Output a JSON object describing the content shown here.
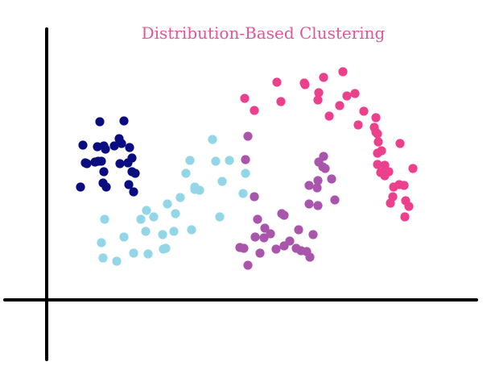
{
  "chart_data": {
    "type": "scatter",
    "title": "Distribution-Based Clustering",
    "xlabel": "",
    "ylabel": "",
    "grid": false,
    "legend": "none",
    "xlim": [
      0,
      540
    ],
    "ylim": [
      0,
      340
    ],
    "colors": {
      "title": "#e0569a",
      "axes": "#000000"
    },
    "series": [
      {
        "color": "#0a0d80",
        "points": [
          [
            66,
            221
          ],
          [
            93,
            194
          ],
          [
            96,
            222
          ],
          [
            71,
            191
          ],
          [
            42,
            140
          ],
          [
            48,
            170
          ],
          [
            64,
            172
          ],
          [
            71,
            159
          ],
          [
            68,
            172
          ],
          [
            63,
            190
          ],
          [
            73,
            187
          ],
          [
            60,
            171
          ],
          [
            45,
            192
          ],
          [
            50,
            169
          ],
          [
            101,
            170
          ],
          [
            103,
            189
          ],
          [
            84,
            191
          ],
          [
            106,
            176
          ],
          [
            110,
            157
          ],
          [
            108,
            134
          ],
          [
            102,
            143
          ],
          [
            90,
            200
          ],
          [
            91,
            169
          ],
          [
            106,
            159
          ],
          [
            74,
            140
          ],
          [
            70,
            145
          ]
        ]
      },
      {
        "color": "#93d6e8",
        "points": [
          [
            68,
            71
          ],
          [
            72,
            100
          ],
          [
            70,
            52
          ],
          [
            87,
            48
          ],
          [
            96,
            78
          ],
          [
            108,
            58
          ],
          [
            126,
            57
          ],
          [
            117,
            100
          ],
          [
            124,
            111
          ],
          [
            123,
            85
          ],
          [
            145,
            63
          ],
          [
            148,
            64
          ],
          [
            158,
            85
          ],
          [
            160,
            107
          ],
          [
            150,
            119
          ],
          [
            166,
            127
          ],
          [
            180,
            87
          ],
          [
            184,
            140
          ],
          [
            190,
            136
          ],
          [
            173,
            157
          ],
          [
            178,
            173
          ],
          [
            184,
            137
          ],
          [
            206,
            199
          ],
          [
            210,
            172
          ],
          [
            215,
            103
          ],
          [
            218,
            147
          ],
          [
            227,
            173
          ],
          [
            244,
            132
          ],
          [
            247,
            157
          ],
          [
            133,
            103
          ],
          [
            144,
            81
          ]
        ]
      },
      {
        "color": "#a955ac",
        "points": [
          [
            240,
            65
          ],
          [
            250,
            43
          ],
          [
            259,
            78
          ],
          [
            245,
            64
          ],
          [
            265,
            58
          ],
          [
            270,
            77
          ],
          [
            271,
            89
          ],
          [
            285,
            63
          ],
          [
            278,
            82
          ],
          [
            295,
            67
          ],
          [
            295,
            105
          ],
          [
            292,
            107
          ],
          [
            302,
            73
          ],
          [
            310,
            64
          ],
          [
            316,
            61
          ],
          [
            313,
            87
          ],
          [
            323,
            60
          ],
          [
            326,
            119
          ],
          [
            331,
            81
          ],
          [
            327,
            53
          ],
          [
            337,
            148
          ],
          [
            337,
            117
          ],
          [
            346,
            163
          ],
          [
            343,
            165
          ],
          [
            336,
            139
          ],
          [
            326,
            142
          ],
          [
            354,
            150
          ],
          [
            358,
            124
          ],
          [
            338,
            171
          ],
          [
            344,
            178
          ],
          [
            258,
            128
          ],
          [
            262,
            100
          ],
          [
            250,
            203
          ],
          [
            247,
            174
          ]
        ]
      },
      {
        "color": "#ec3f8c",
        "points": [
          [
            246,
            250
          ],
          [
            258,
            235
          ],
          [
            286,
            270
          ],
          [
            291,
            246
          ],
          [
            321,
            267
          ],
          [
            337,
            248
          ],
          [
            320,
            269
          ],
          [
            344,
            276
          ],
          [
            368,
            283
          ],
          [
            338,
            257
          ],
          [
            351,
            228
          ],
          [
            364,
            241
          ],
          [
            373,
            253
          ],
          [
            383,
            256
          ],
          [
            387,
            217
          ],
          [
            409,
            226
          ],
          [
            411,
            206
          ],
          [
            412,
            196
          ],
          [
            416,
            185
          ],
          [
            411,
            168
          ],
          [
            415,
            158
          ],
          [
            420,
            167
          ],
          [
            425,
            159
          ],
          [
            430,
            128
          ],
          [
            420,
            154
          ],
          [
            445,
            103
          ],
          [
            446,
            123
          ],
          [
            455,
            163
          ],
          [
            439,
            194
          ],
          [
            438,
            143
          ],
          [
            431,
            140
          ],
          [
            450,
            116
          ],
          [
            444,
            142
          ],
          [
            409,
            208
          ],
          [
            427,
            120
          ],
          [
            394,
            234
          ],
          [
            407,
            214
          ],
          [
            411,
            182
          ]
        ]
      }
    ]
  }
}
